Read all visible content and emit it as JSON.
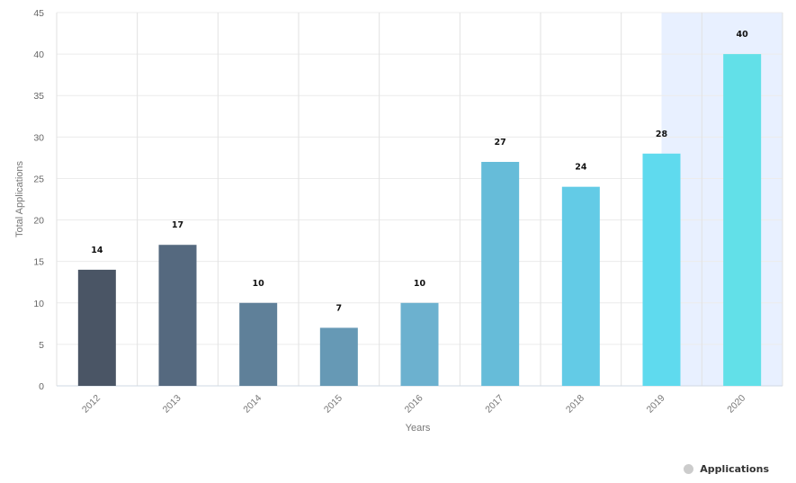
{
  "chart_data": {
    "type": "bar",
    "categories": [
      "2012",
      "2013",
      "2014",
      "2015",
      "2016",
      "2017",
      "2018",
      "2019",
      "2020"
    ],
    "series": [
      {
        "name": "Applications",
        "values": [
          14,
          17,
          10,
          7,
          10,
          27,
          24,
          28,
          40
        ]
      }
    ],
    "bar_colors": [
      "#4a5565",
      "#55697f",
      "#5f8099",
      "#6699b5",
      "#6cb1cf",
      "#66bcd9",
      "#63cbe6",
      "#5fdaee",
      "#62e0e8"
    ],
    "highlight_band": {
      "from_category": "2019",
      "to_category": "2020",
      "color": "#e8f0ff"
    },
    "xlabel": "Years",
    "ylabel": "Total Applications",
    "ylim": [
      0,
      45
    ],
    "yticks": [
      0,
      5,
      10,
      15,
      20,
      25,
      30,
      35,
      40,
      45
    ],
    "grid": true,
    "legend": {
      "position": "bottom-right",
      "dot_color": "#cccccc"
    }
  }
}
